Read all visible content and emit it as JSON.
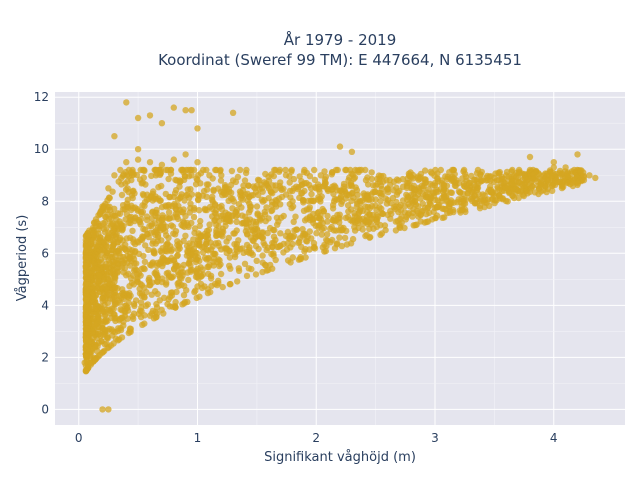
{
  "chart_data": {
    "type": "scatter",
    "title_lines": [
      "År 1979 - 2019",
      "Koordinat (Sweref 99 TM): E 447664, N 6135451"
    ],
    "xlabel": "Signifikant våghöjd (m)",
    "ylabel": "Vågperiod (s)",
    "xlim": [
      -0.2,
      4.6
    ],
    "ylim": [
      -0.6,
      12.2
    ],
    "xticks": [
      0,
      1,
      2,
      3,
      4
    ],
    "yticks": [
      0,
      2,
      4,
      6,
      8,
      10,
      12
    ],
    "grid": true,
    "legend": false,
    "marker_color": "#d4a520",
    "plot_bg": "#e5e5ee",
    "series": [
      {
        "x": [
          0.05,
          0.07,
          0.08,
          0.06,
          0.1,
          0.12,
          0.15,
          0.18,
          0.2,
          0.25,
          0.3,
          0.35,
          0.4,
          0.45,
          0.5,
          0.55,
          0.6,
          0.65,
          0.7,
          0.75,
          0.8,
          0.85,
          0.9,
          0.95,
          1.0,
          1.1,
          1.2,
          1.3,
          1.4,
          1.5,
          1.6,
          1.7,
          1.8,
          1.9,
          2.0,
          2.1,
          2.2,
          2.3,
          2.4,
          2.5,
          2.6,
          2.7,
          2.8,
          2.9,
          3.0,
          3.1,
          3.2,
          3.3,
          3.4,
          3.5,
          3.6,
          3.7,
          3.8,
          3.9,
          4.0,
          4.1,
          4.2,
          4.3,
          4.35,
          0.3,
          0.5,
          0.7,
          0.9,
          0.4,
          0.6,
          0.8,
          1.0,
          0.95,
          1.3,
          2.2,
          3.8,
          4.0,
          2.3,
          0.2,
          0.25,
          0.5
        ],
        "y": [
          1.8,
          2.3,
          3.0,
          4.5,
          5.2,
          6.5,
          7.2,
          7.5,
          7.8,
          8.5,
          9.0,
          9.2,
          9.5,
          9.0,
          9.6,
          9.2,
          9.5,
          9.0,
          9.4,
          9.2,
          9.6,
          8.8,
          9.8,
          9.0,
          9.5,
          9.0,
          9.0,
          8.8,
          8.8,
          8.6,
          8.5,
          8.5,
          8.4,
          8.4,
          8.5,
          8.4,
          8.4,
          8.3,
          8.3,
          8.6,
          8.5,
          8.4,
          8.5,
          8.5,
          8.7,
          8.6,
          8.7,
          8.6,
          8.8,
          8.9,
          9.0,
          8.9,
          9.2,
          8.8,
          9.5,
          9.3,
          9.8,
          9.0,
          8.9,
          10.5,
          11.2,
          11.0,
          11.5,
          11.8,
          11.3,
          11.6,
          10.8,
          11.5,
          11.4,
          10.1,
          9.7,
          9.3,
          9.9,
          0.0,
          0.0,
          10.0
        ]
      }
    ]
  }
}
